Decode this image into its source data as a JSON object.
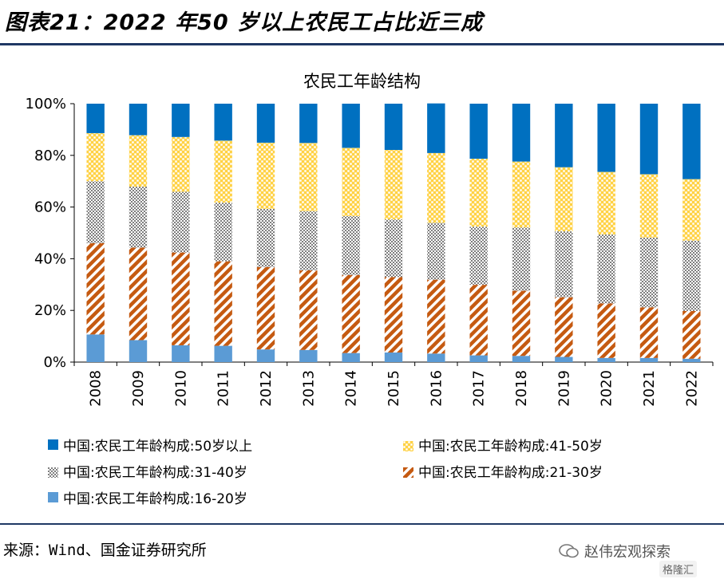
{
  "figure_title": "图表21：2022 年50 岁以上农民工占比近三成",
  "source_text": "来源：Wind、国金证券研究所",
  "watermark_text": "赵伟宏观探索",
  "watermark_badge": "格隆汇",
  "chart_data": {
    "type": "bar",
    "stacked": true,
    "title": "农民工年龄结构",
    "categories": [
      "2008",
      "2009",
      "2010",
      "2011",
      "2012",
      "2013",
      "2014",
      "2015",
      "2016",
      "2017",
      "2018",
      "2019",
      "2020",
      "2021",
      "2022"
    ],
    "ylim": [
      0,
      100
    ],
    "yticks": [
      "0%",
      "20%",
      "40%",
      "60%",
      "80%",
      "100%"
    ],
    "grid": false,
    "legend_position": "bottom",
    "series": [
      {
        "name": "中国:农民工年龄构成:16-20岁",
        "color": "#5b9bd5",
        "pattern": "solid-light",
        "values": [
          10.7,
          8.5,
          6.5,
          6.3,
          4.9,
          4.7,
          3.5,
          3.7,
          3.3,
          2.6,
          2.4,
          2.0,
          1.6,
          1.6,
          1.3
        ]
      },
      {
        "name": "中国:农民工年龄构成:21-30岁",
        "color": "#c55a11",
        "pattern": "diagonal",
        "values": [
          35.3,
          35.8,
          35.9,
          32.7,
          31.9,
          30.8,
          30.2,
          29.2,
          28.6,
          27.3,
          25.2,
          23.1,
          21.1,
          19.6,
          18.5
        ]
      },
      {
        "name": "中国:农民工年龄构成:31-40岁",
        "color": "#7f7f7f",
        "pattern": "checker",
        "values": [
          24.0,
          23.6,
          23.5,
          22.7,
          22.5,
          22.9,
          22.8,
          22.3,
          22.0,
          22.5,
          24.5,
          25.5,
          26.7,
          27.0,
          27.2
        ]
      },
      {
        "name": "中国:农民工年龄构成:41-50岁",
        "color": "#ffc000",
        "pattern": "dots",
        "values": [
          18.6,
          19.9,
          21.2,
          24.0,
          25.6,
          26.4,
          26.4,
          26.9,
          27.0,
          26.3,
          25.5,
          24.8,
          24.2,
          24.5,
          23.8
        ]
      },
      {
        "name": "中国:农民工年龄构成:50岁以上",
        "color": "#0070c0",
        "pattern": "solid",
        "values": [
          11.4,
          12.2,
          12.9,
          14.3,
          15.1,
          15.2,
          17.1,
          17.9,
          19.2,
          21.3,
          22.4,
          24.6,
          26.4,
          27.3,
          29.2
        ]
      }
    ]
  }
}
